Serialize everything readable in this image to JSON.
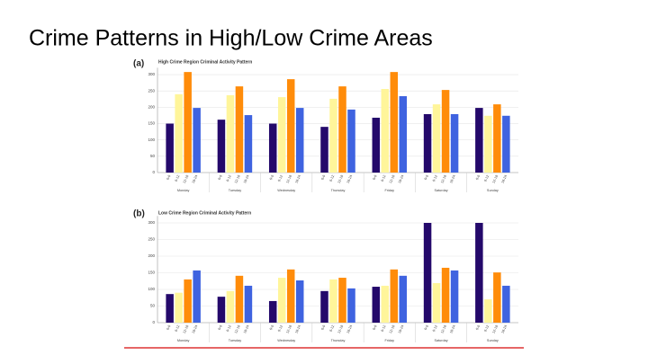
{
  "title": "Crime Patterns in High/Low Crime Areas",
  "chart_data": [
    {
      "type": "bar",
      "panel_label": "(a)",
      "title": "High Crime Region Criminal Activity Pattern",
      "categories": [
        "Monday",
        "Tuesday",
        "Wednesday",
        "Thursday",
        "Friday",
        "Saturday",
        "Sunday"
      ],
      "series": [
        {
          "name": "0-6",
          "color": "#24096b",
          "values": [
            150,
            162,
            150,
            140,
            168,
            179,
            198
          ]
        },
        {
          "name": "6-12",
          "color": "#fff59a",
          "values": [
            240,
            237,
            231,
            226,
            256,
            209,
            174
          ]
        },
        {
          "name": "12-18",
          "color": "#ff8c0a",
          "values": [
            308,
            264,
            286,
            264,
            308,
            253,
            209
          ]
        },
        {
          "name": "18-24",
          "color": "#3f63e0",
          "values": [
            198,
            176,
            198,
            193,
            234,
            179,
            174
          ]
        }
      ],
      "ylim": [
        0,
        310
      ],
      "yticks": [
        0,
        50,
        100,
        150,
        200,
        250,
        300
      ],
      "grid": true
    },
    {
      "type": "bar",
      "panel_label": "(b)",
      "title": "Low Crime Region Criminal Activity Pattern",
      "categories": [
        "Monday",
        "Tuesday",
        "Wednesday",
        "Thursday",
        "Friday",
        "Saturday",
        "Sunday"
      ],
      "series": [
        {
          "name": "0-6",
          "color": "#24096b",
          "values": [
            86,
            78,
            65,
            95,
            108,
            300,
            300
          ]
        },
        {
          "name": "6-12",
          "color": "#fff59a",
          "values": [
            90,
            95,
            135,
            130,
            111,
            119,
            70
          ]
        },
        {
          "name": "12-18",
          "color": "#ff8c0a",
          "values": [
            130,
            141,
            160,
            135,
            160,
            165,
            151
          ]
        },
        {
          "name": "18-24",
          "color": "#3f63e0",
          "values": [
            157,
            111,
            127,
            103,
            141,
            157,
            111
          ]
        }
      ],
      "ylim": [
        0,
        310
      ],
      "yticks": [
        0,
        50,
        100,
        150,
        200,
        250,
        300
      ],
      "grid": true
    }
  ]
}
